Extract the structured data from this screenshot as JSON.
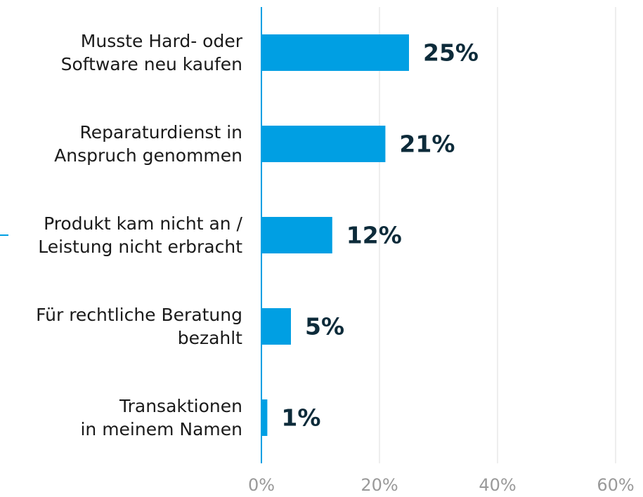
{
  "chart_data": {
    "type": "bar",
    "orientation": "horizontal",
    "categories": [
      "Musste Hard- oder\nSoftware neu kaufen",
      "Reparaturdienst in\nAnspruch genommen",
      "Produkt kam nicht an /\nLeistung nicht erbracht",
      "Für rechtliche Beratung\nbezahlt",
      "Transaktionen\nin meinem Namen"
    ],
    "values": [
      25,
      21,
      12,
      5,
      1
    ],
    "value_labels": [
      "25%",
      "21%",
      "12%",
      "5%",
      "1%"
    ],
    "color": "#009fe3",
    "xlim": [
      0,
      60
    ],
    "xticks": [
      {
        "value": 0,
        "label": "0%"
      },
      {
        "value": 20,
        "label": "20%"
      },
      {
        "value": 40,
        "label": "40%"
      },
      {
        "value": 60,
        "label": "60%"
      }
    ],
    "grid": true
  }
}
